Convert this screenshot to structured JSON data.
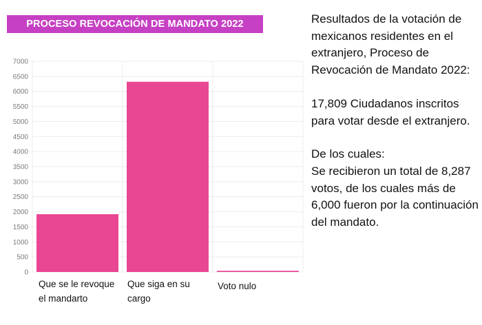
{
  "banner": {
    "title": "PROCESO REVOCACIÓN DE MANDATO 2022"
  },
  "chart_data": {
    "type": "bar",
    "categories": [
      "Que se le revoque el mandarto",
      "Que siga en su cargo",
      "Voto nulo"
    ],
    "category_lines": [
      [
        "Que se le revoque",
        "el mandarto"
      ],
      [
        "Que siga en su",
        "cargo"
      ],
      [
        "Voto nulo"
      ]
    ],
    "values": [
      1920,
      6320,
      40
    ],
    "yticks": [
      0,
      500,
      1000,
      1500,
      2000,
      2500,
      3000,
      3500,
      4000,
      4500,
      5000,
      5500,
      6000,
      6500,
      7000
    ],
    "ylim": [
      0,
      7000
    ],
    "grid": true,
    "bar_color": "#e94694",
    "title": "",
    "xlabel": "",
    "ylabel": ""
  },
  "sidebar": {
    "intro": "Resultados de la votación de mexicanos residentes en el extranjero, Proceso de Revocación de Mandato 2022:",
    "registered": "17,809 Ciudadanos inscritos para votar desde el extranjero.",
    "lead": "De los cuales:",
    "votes": "Se recibieron un total de 8,287 votos, de los cuales más de 6,000 fueron por la continuación del mandato."
  }
}
